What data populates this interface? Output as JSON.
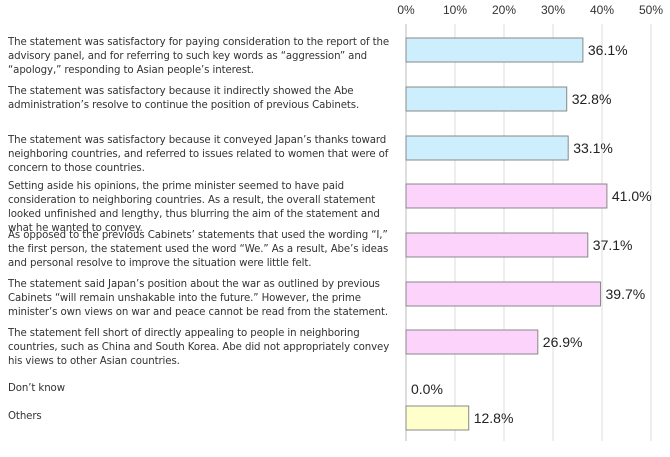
{
  "chart_data": {
    "type": "bar",
    "orientation": "horizontal",
    "title": "",
    "xlabel": "",
    "ylabel": "",
    "xlim": [
      0,
      50
    ],
    "ticks": [
      "0%",
      "10%",
      "20%",
      "30%",
      "40%",
      "50%"
    ],
    "grid": true,
    "categories": [
      "The statement was satisfactory for paying consideration to the report of the advisory panel, and for referring to such key words as “aggression” and “apology,” responding to Asian people’s interest.",
      "The statement was satisfactory because it indirectly showed the Abe administration’s resolve to continue the position of previous Cabinets.",
      "The statement was satisfactory because it conveyed Japan’s thanks toward neighboring countries, and referred to issues related to women that were of concern to those countries.",
      "Setting aside his opinions, the prime minister seemed to have paid consideration to neighboring countries. As a result, the overall statement looked unfinished and lengthy, thus blurring the aim of the statement and what he wanted to convey.",
      "As opposed to the previous Cabinets’ statements that used the wording “I,” the first person, the statement used the word “We.” As a result, Abe’s ideas and personal resolve to improve the situation were little felt.",
      "The statement said Japan’s position about the war as outlined by previous Cabinets “will remain unshakable into the future.” However, the prime minister’s own views on war and peace cannot be read from the statement.",
      "The statement fell short of directly appealing to people in neighboring countries, such as China and South Korea. Abe did not appropriately convey his views to other Asian countries.",
      "Don’t know",
      "Others"
    ],
    "values": [
      36.1,
      32.8,
      33.1,
      41.0,
      37.1,
      39.7,
      26.9,
      0.0,
      12.8
    ],
    "value_labels": [
      "36.1%",
      "32.8%",
      "33.1%",
      "41.0%",
      "37.1%",
      "39.7%",
      "26.9%",
      "0.0%",
      "12.8%"
    ],
    "colors": [
      "#cdeefc",
      "#cdeefc",
      "#cdeefc",
      "#fbd3fb",
      "#fbd3fb",
      "#fbd3fb",
      "#fbd3fb",
      "#ffffcc",
      "#ffffcc"
    ]
  }
}
